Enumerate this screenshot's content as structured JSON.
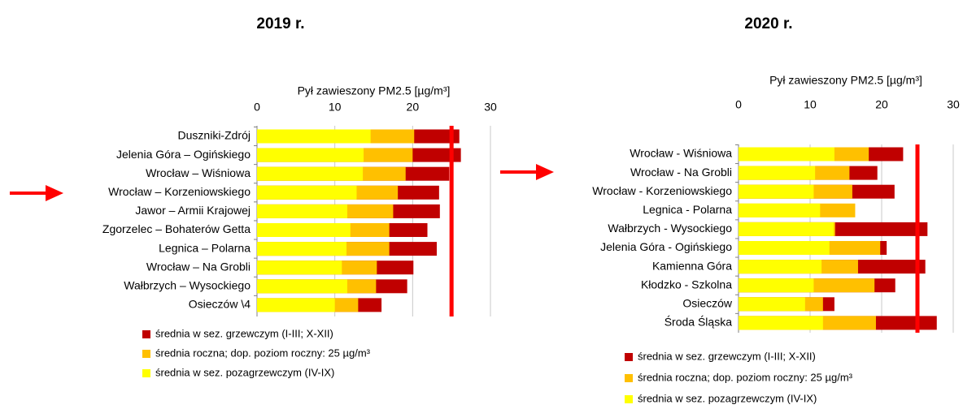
{
  "chart_data": [
    {
      "type": "bar",
      "orientation": "horizontal",
      "title": "2019 r.",
      "xlabel": "Pył zawieszony PM2.5 [µg/m³]",
      "categories": [
        "Duszniki-Zdrój",
        "Jelenia Góra – Ogińskiego",
        "Wrocław – Wiśniowa",
        "Wrocław – Korzeniowskiego",
        "Jawor – Armii Krajowej",
        "Zgorzelec – Bohaterów Getta",
        "Legnica – Polarna",
        "Wrocław – Na Grobli",
        "Wałbrzych – Wysockiego",
        "Osieczów \\4"
      ],
      "series": [
        {
          "name": "średnia w sez. grzewczym (I-III; X-XII)",
          "color": "#c00000",
          "values": [
            26.0,
            26.2,
            24.7,
            23.4,
            23.5,
            21.9,
            23.1,
            20.1,
            19.3,
            16.0
          ]
        },
        {
          "name": "średnia roczna; dop. poziom roczny: 25 µg/m³",
          "color": "#ffc000",
          "values": [
            20.2,
            20.0,
            19.1,
            18.1,
            17.5,
            17.0,
            17.0,
            15.4,
            15.3,
            13.0
          ]
        },
        {
          "name": "średnia w sez. pozagrzewczym (IV-IX)",
          "color": "#ffff00",
          "values": [
            14.6,
            13.7,
            13.6,
            12.8,
            11.6,
            12.0,
            11.5,
            10.9,
            11.6,
            10.0
          ]
        }
      ],
      "xlim": [
        0,
        30
      ],
      "xticks": [
        0,
        10,
        20,
        30
      ],
      "grid": true,
      "reference_line": 25,
      "reference_color": "#ff0000"
    },
    {
      "type": "bar",
      "orientation": "horizontal",
      "title": "2020 r.",
      "xlabel": "Pył zawieszony PM2.5 [µg/m³]",
      "categories": [
        "Wrocław - Wiśniowa",
        "Wrocław - Na Grobli",
        "Wrocław - Korzeniowskiego",
        "Legnica - Polarna",
        "Wałbrzych - Wysockiego",
        "Jelenia Góra - Ogińskiego",
        "Kamienna Góra",
        "Kłodzko - Szkolna",
        "Osieczów",
        "Środa Śląska"
      ],
      "series": [
        {
          "name": "średnia w sez. grzewczym (I-III; X-XII)",
          "color": "#c00000",
          "values": [
            23.0,
            19.4,
            21.8,
            null,
            26.4,
            20.7,
            26.1,
            21.9,
            13.4,
            27.7
          ]
        },
        {
          "name": "średnia roczna; dop. poziom roczny: 25 µg/m³",
          "color": "#ffc000",
          "values": [
            18.2,
            15.5,
            15.9,
            16.3,
            13.5,
            19.8,
            16.7,
            19.0,
            11.8,
            19.2
          ]
        },
        {
          "name": "średnia w sez. pozagrzewczym (IV-IX)",
          "color": "#ffff00",
          "values": [
            13.4,
            10.7,
            10.5,
            11.4,
            13.3,
            12.7,
            11.6,
            10.5,
            9.3,
            11.8
          ]
        }
      ],
      "xlim": [
        0,
        30
      ],
      "xticks": [
        0,
        10,
        20,
        30
      ],
      "grid": true,
      "reference_line": 25,
      "reference_color": "#ff0000"
    }
  ]
}
